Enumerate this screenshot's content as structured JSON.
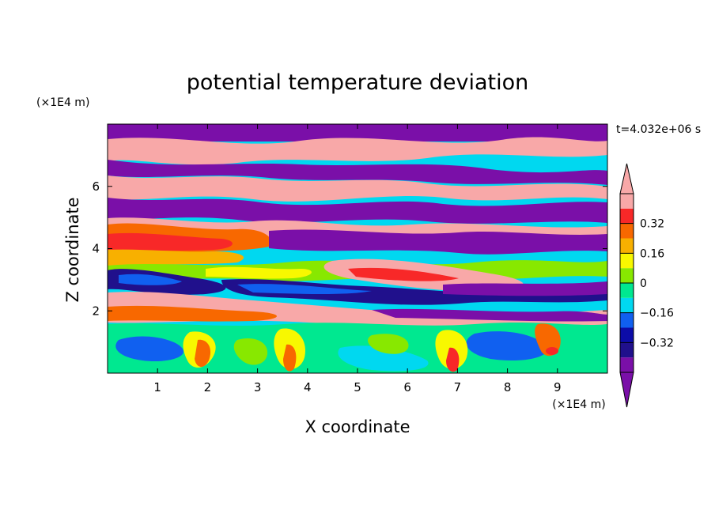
{
  "chart_data": {
    "type": "heatmap",
    "title": "potential temperature deviation",
    "xlabel": "X coordinate",
    "ylabel": "Z coordinate",
    "x_unit_label": "(×1E4 m)",
    "y_unit_label": "(×1E4 m)",
    "time_label": "t=4.032e+06 s",
    "xlim": [
      0,
      10
    ],
    "ylim": [
      0,
      8
    ],
    "x_ticks": [
      1,
      2,
      3,
      4,
      5,
      6,
      7,
      8,
      9
    ],
    "x_tick_labels": [
      "1",
      "2",
      "3",
      "4",
      "5",
      "6",
      "7",
      "8",
      "9"
    ],
    "y_ticks": [
      2,
      4,
      6
    ],
    "y_tick_labels": [
      "2",
      "4",
      "6"
    ],
    "colorbar": {
      "levels": [
        -0.48,
        -0.4,
        -0.32,
        -0.24,
        -0.16,
        -0.08,
        0,
        0.08,
        0.16,
        0.24,
        0.32,
        0.4,
        0.48
      ],
      "labels": [
        "0.32",
        "0.16",
        "0",
        "−0.16",
        "−0.32"
      ],
      "label_values": [
        0.32,
        0.16,
        0,
        -0.16,
        -0.32
      ],
      "colors": [
        "#7a0fa8",
        "#20108c",
        "#0c0ca8",
        "#1060f0",
        "#00d8f0",
        "#00e890",
        "#88e800",
        "#f8f800",
        "#f8b000",
        "#f86800",
        "#f82828",
        "#f8a8a8"
      ],
      "over_color": "#f8a8a8",
      "under_color": "#7a0fa8"
    }
  }
}
